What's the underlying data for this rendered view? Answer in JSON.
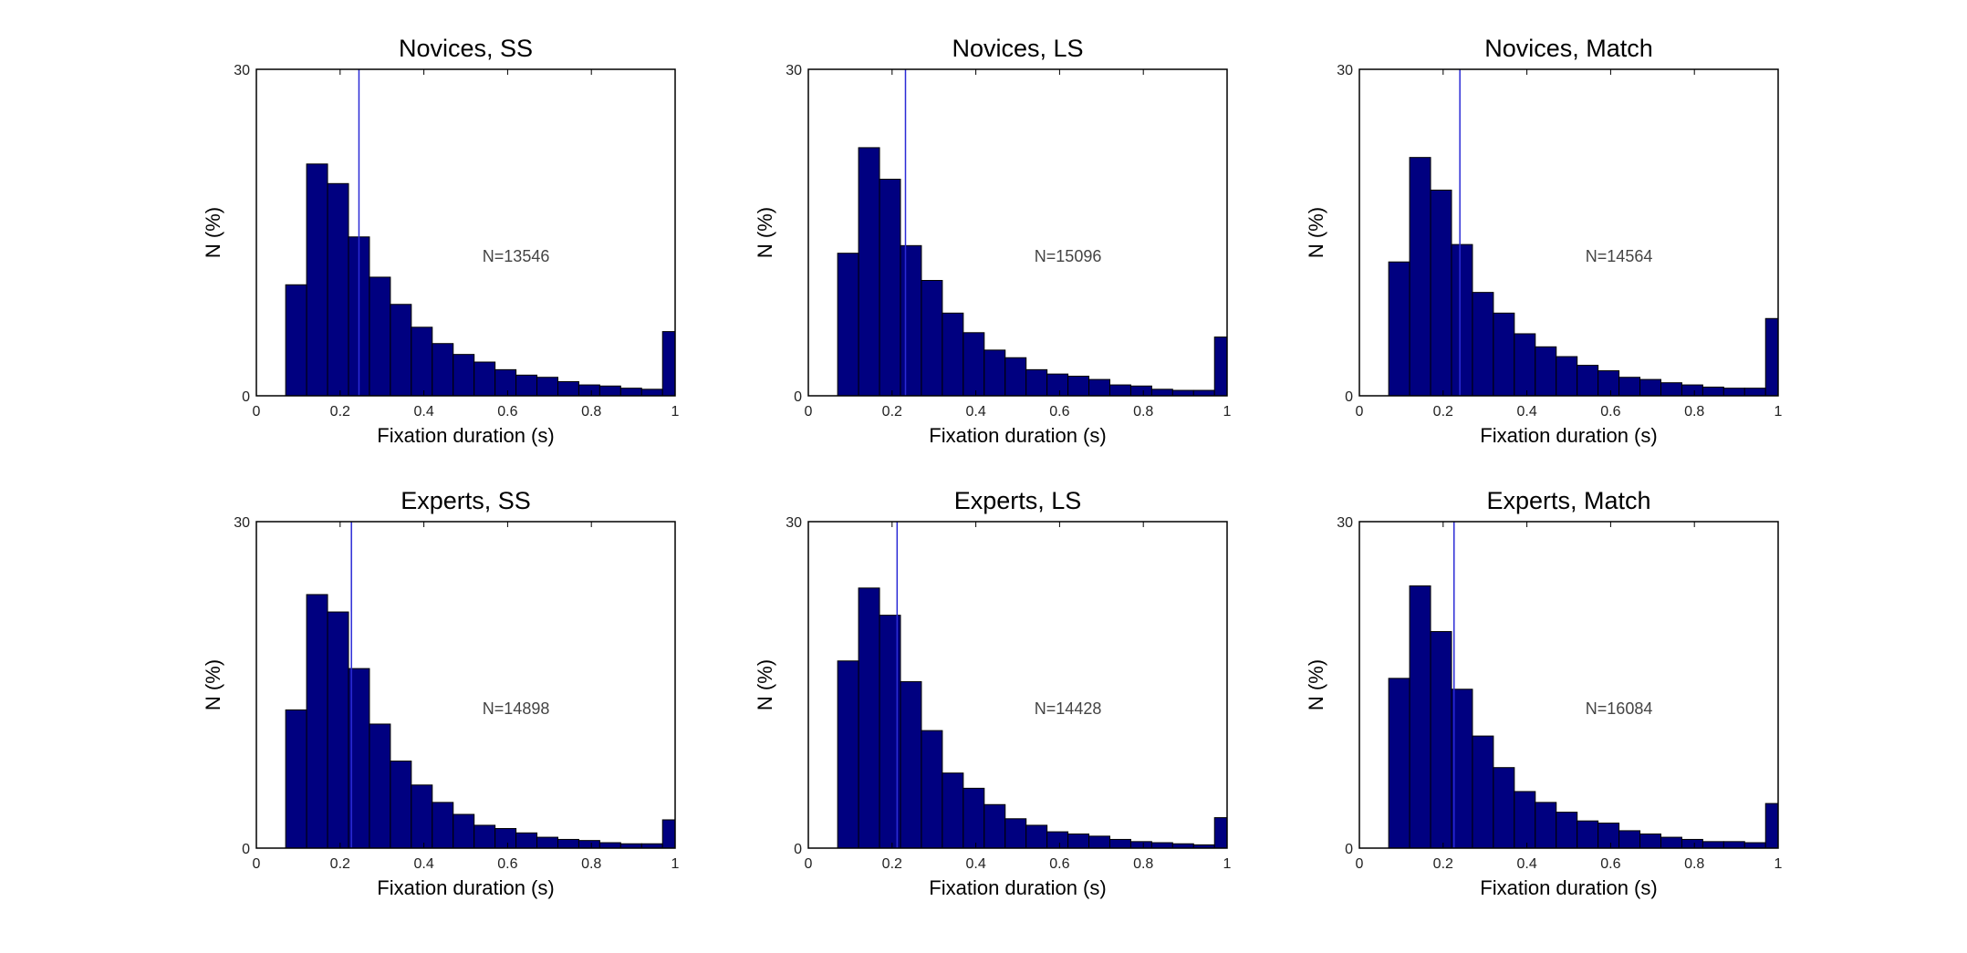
{
  "chart_data": [
    {
      "type": "bar",
      "title": "Novices, SS",
      "xlabel": "Fixation duration (s)",
      "ylabel": "N (%)",
      "annotation": "N=13546",
      "xlim": [
        0,
        1
      ],
      "ylim": [
        0,
        30
      ],
      "xticks": [
        "0",
        "0.2",
        "0.4",
        "0.6",
        "0.8",
        "1"
      ],
      "yticks": [
        "0",
        "30"
      ],
      "mean_line_x": 0.245,
      "bin_edges": [
        0.07,
        0.12,
        0.17,
        0.22,
        0.27,
        0.32,
        0.37,
        0.42,
        0.47,
        0.52,
        0.57,
        0.62,
        0.67,
        0.72,
        0.77,
        0.82,
        0.87,
        0.92,
        0.97,
        1.0
      ],
      "values": [
        10.2,
        21.3,
        19.5,
        14.6,
        10.9,
        8.4,
        6.3,
        4.8,
        3.8,
        3.1,
        2.4,
        1.9,
        1.7,
        1.3,
        1.0,
        0.9,
        0.7,
        0.6,
        5.9
      ]
    },
    {
      "type": "bar",
      "title": "Novices, LS",
      "xlabel": "Fixation duration (s)",
      "ylabel": "N (%)",
      "annotation": "N=15096",
      "xlim": [
        0,
        1
      ],
      "ylim": [
        0,
        30
      ],
      "xticks": [
        "0",
        "0.2",
        "0.4",
        "0.6",
        "0.8",
        "1"
      ],
      "yticks": [
        "0",
        "30"
      ],
      "mean_line_x": 0.232,
      "bin_edges": [
        0.07,
        0.12,
        0.17,
        0.22,
        0.27,
        0.32,
        0.37,
        0.42,
        0.47,
        0.52,
        0.57,
        0.62,
        0.67,
        0.72,
        0.77,
        0.82,
        0.87,
        0.92,
        0.97,
        1.0
      ],
      "values": [
        13.1,
        22.8,
        19.9,
        13.8,
        10.6,
        7.6,
        5.8,
        4.2,
        3.5,
        2.4,
        2.0,
        1.8,
        1.5,
        1.0,
        0.9,
        0.6,
        0.5,
        0.5,
        5.4
      ]
    },
    {
      "type": "bar",
      "title": "Novices, Match",
      "xlabel": "Fixation duration (s)",
      "ylabel": "N (%)",
      "annotation": "N=14564",
      "xlim": [
        0,
        1
      ],
      "ylim": [
        0,
        30
      ],
      "xticks": [
        "0",
        "0.2",
        "0.4",
        "0.6",
        "0.8",
        "1"
      ],
      "yticks": [
        "0",
        "30"
      ],
      "mean_line_x": 0.24,
      "bin_edges": [
        0.07,
        0.12,
        0.17,
        0.22,
        0.27,
        0.32,
        0.37,
        0.42,
        0.47,
        0.52,
        0.57,
        0.62,
        0.67,
        0.72,
        0.77,
        0.82,
        0.87,
        0.92,
        0.97,
        1.0
      ],
      "values": [
        12.3,
        21.9,
        18.9,
        13.9,
        9.5,
        7.6,
        5.7,
        4.5,
        3.6,
        2.8,
        2.3,
        1.7,
        1.5,
        1.2,
        1.0,
        0.8,
        0.7,
        0.7,
        7.1
      ]
    },
    {
      "type": "bar",
      "title": "Experts, SS",
      "xlabel": "Fixation duration (s)",
      "ylabel": "N (%)",
      "annotation": "N=14898",
      "xlim": [
        0,
        1
      ],
      "ylim": [
        0,
        30
      ],
      "xticks": [
        "0",
        "0.2",
        "0.4",
        "0.6",
        "0.8",
        "1"
      ],
      "yticks": [
        "0",
        "30"
      ],
      "mean_line_x": 0.227,
      "bin_edges": [
        0.07,
        0.12,
        0.17,
        0.22,
        0.27,
        0.32,
        0.37,
        0.42,
        0.47,
        0.52,
        0.57,
        0.62,
        0.67,
        0.72,
        0.77,
        0.82,
        0.87,
        0.92,
        0.97,
        1.0
      ],
      "values": [
        12.7,
        23.3,
        21.7,
        16.5,
        11.4,
        8.0,
        5.8,
        4.2,
        3.1,
        2.1,
        1.8,
        1.4,
        1.0,
        0.8,
        0.7,
        0.5,
        0.4,
        0.4,
        2.6
      ]
    },
    {
      "type": "bar",
      "title": "Experts, LS",
      "xlabel": "Fixation duration (s)",
      "ylabel": "N (%)",
      "annotation": "N=14428",
      "xlim": [
        0,
        1
      ],
      "ylim": [
        0,
        30
      ],
      "xticks": [
        "0",
        "0.2",
        "0.4",
        "0.6",
        "0.8",
        "1"
      ],
      "yticks": [
        "0",
        "30"
      ],
      "mean_line_x": 0.212,
      "bin_edges": [
        0.07,
        0.12,
        0.17,
        0.22,
        0.27,
        0.32,
        0.37,
        0.42,
        0.47,
        0.52,
        0.57,
        0.62,
        0.67,
        0.72,
        0.77,
        0.82,
        0.87,
        0.92,
        0.97,
        1.0
      ],
      "values": [
        17.2,
        23.9,
        21.4,
        15.3,
        10.8,
        6.9,
        5.5,
        4.0,
        2.7,
        2.1,
        1.5,
        1.3,
        1.1,
        0.8,
        0.6,
        0.5,
        0.4,
        0.3,
        2.8
      ]
    },
    {
      "type": "bar",
      "title": "Experts, Match",
      "xlabel": "Fixation duration (s)",
      "ylabel": "N (%)",
      "annotation": "N=16084",
      "xlim": [
        0,
        1
      ],
      "ylim": [
        0,
        30
      ],
      "xticks": [
        "0",
        "0.2",
        "0.4",
        "0.6",
        "0.8",
        "1"
      ],
      "yticks": [
        "0",
        "30"
      ],
      "mean_line_x": 0.226,
      "bin_edges": [
        0.07,
        0.12,
        0.17,
        0.22,
        0.27,
        0.32,
        0.37,
        0.42,
        0.47,
        0.52,
        0.57,
        0.62,
        0.67,
        0.72,
        0.77,
        0.82,
        0.87,
        0.92,
        0.97,
        1.0
      ],
      "values": [
        15.6,
        24.1,
        19.9,
        14.6,
        10.3,
        7.4,
        5.2,
        4.2,
        3.3,
        2.5,
        2.3,
        1.6,
        1.3,
        1.0,
        0.8,
        0.6,
        0.6,
        0.5,
        4.1
      ]
    }
  ]
}
